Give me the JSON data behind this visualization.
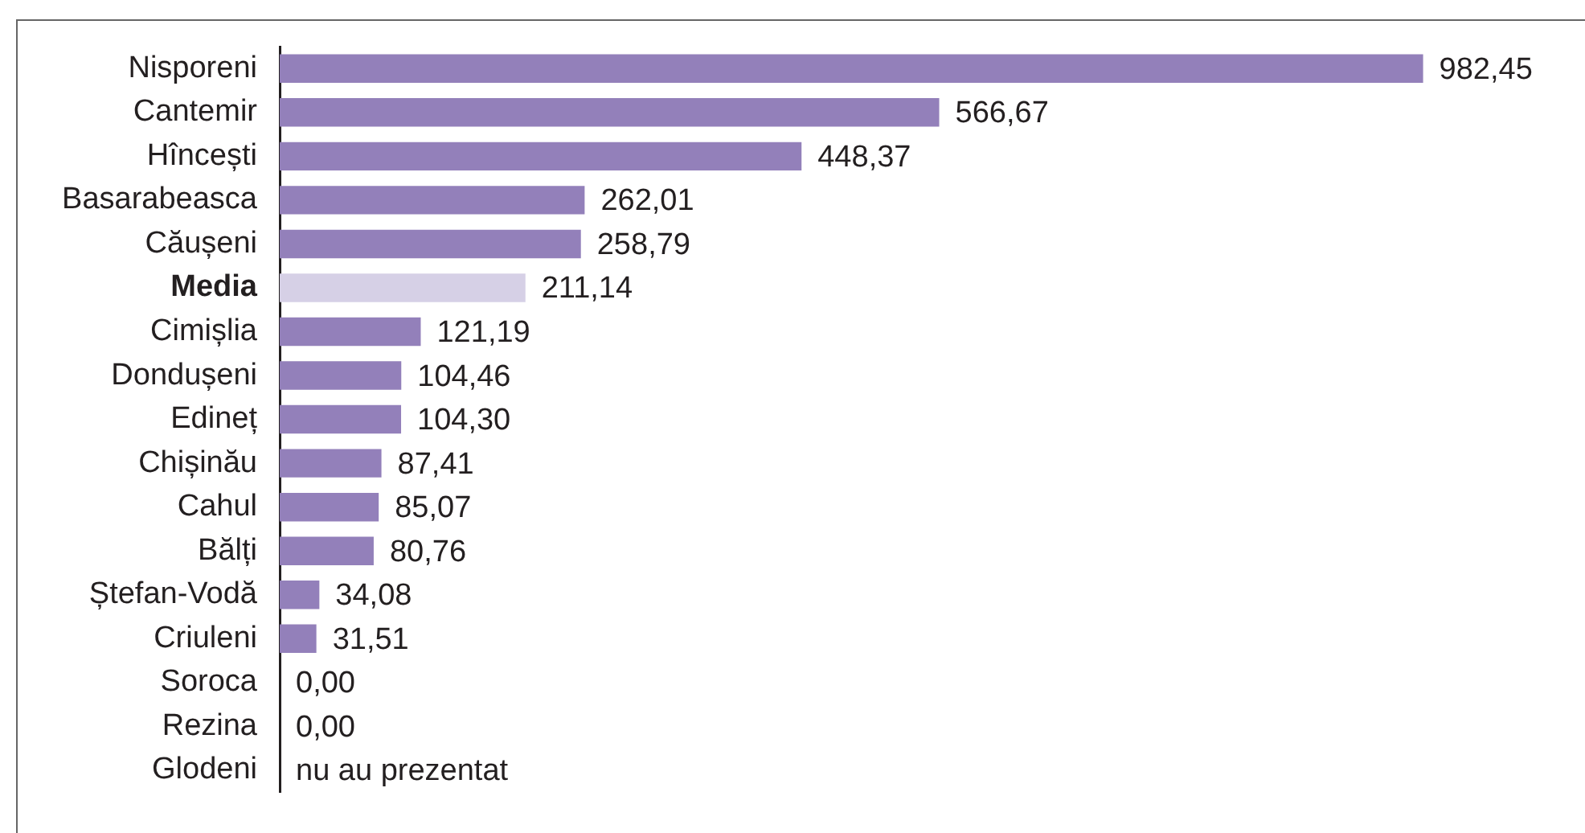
{
  "chart_data": {
    "type": "bar",
    "orientation": "horizontal",
    "categories": [
      "Nisporeni",
      "Cantemir",
      "Hîncești",
      "Basarabeasca",
      "Căușeni",
      "Media",
      "Cimișlia",
      "Dondușeni",
      "Edineț",
      "Chișinău",
      "Cahul",
      "Bălți",
      "Ștefan-Vodă",
      "Criuleni",
      "Soroca",
      "Rezina",
      "Glodeni"
    ],
    "values": [
      982.45,
      566.67,
      448.37,
      262.01,
      258.79,
      211.14,
      121.19,
      104.46,
      104.3,
      87.41,
      85.07,
      80.76,
      34.08,
      31.51,
      0,
      0,
      null
    ],
    "colors": [
      "#9380ba",
      "#9380ba",
      "#9380ba",
      "#9380ba",
      "#9380ba",
      "#d6d0e6",
      "#9380ba",
      "#9380ba",
      "#9380ba",
      "#9380ba",
      "#9380ba",
      "#9380ba",
      "#9380ba",
      "#9380ba",
      "#9380ba",
      "#9380ba",
      "#9380ba"
    ],
    "value_labels": [
      "982,45",
      "566,67",
      "448,37",
      "262,01",
      "258,79",
      "211,14",
      "121,19",
      "104,46",
      "104,30",
      "87,41",
      "85,07",
      "80,76",
      "34,08",
      "31,51",
      "0,00",
      "0,00",
      "nu au prezentat"
    ],
    "tick_labels": "y",
    "grid": false,
    "legend": false
  }
}
